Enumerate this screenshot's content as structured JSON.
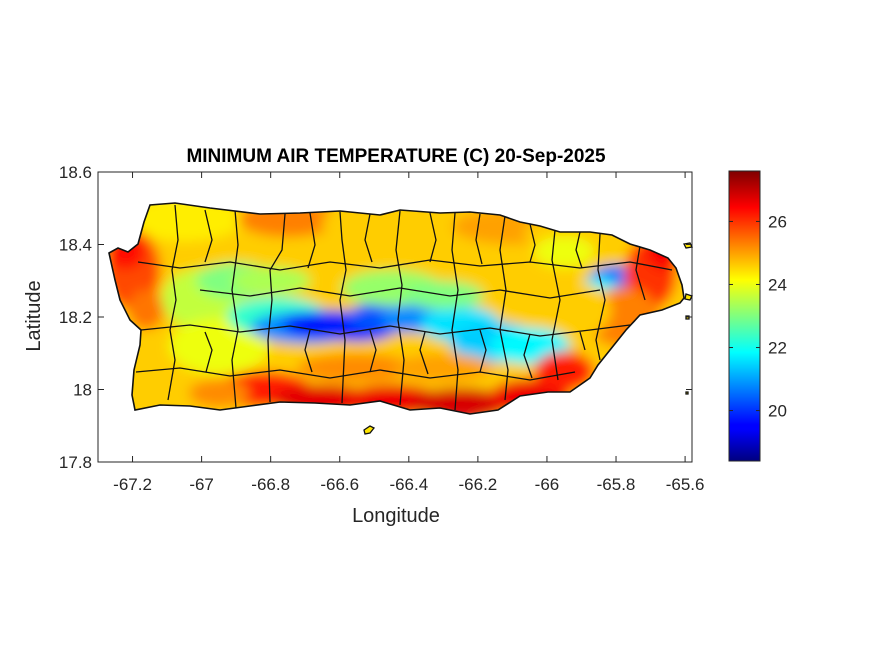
{
  "chart_data": {
    "type": "heatmap",
    "title": "MINIMUM AIR TEMPERATURE (C) 20-Sep-2025",
    "xlabel": "Longitude",
    "ylabel": "Latitude",
    "xlim": [
      -67.3,
      -65.58
    ],
    "ylim": [
      17.8,
      18.6
    ],
    "xticks": [
      -67.2,
      -67,
      -66.8,
      -66.6,
      -66.4,
      -66.2,
      -66,
      -65.8,
      -65.6
    ],
    "xtick_labels": [
      "-67.2",
      "-67",
      "-66.8",
      "-66.6",
      "-66.4",
      "-66.2",
      "-66",
      "-65.8",
      "-65.6"
    ],
    "yticks": [
      17.8,
      18,
      18.2,
      18.4,
      18.6
    ],
    "ytick_labels": [
      "17.8",
      "18",
      "18.2",
      "18.4",
      "18.6"
    ],
    "colorbar": {
      "colormap": "jet",
      "range": [
        18.4,
        27.6
      ],
      "ticks": [
        20,
        22,
        24,
        26
      ],
      "tick_labels": [
        "20",
        "22",
        "24",
        "26"
      ],
      "placement": "right"
    },
    "grid": false,
    "region": "Puerto Rico",
    "features": [
      {
        "description": "cool interior ridge (Cordillera Central)",
        "lon_range": [
          -66.85,
          -66.1
        ],
        "lat": 18.18,
        "min_value": 19.5
      },
      {
        "description": "cool pocket (El Yunque)",
        "lon": -65.8,
        "lat": 18.3,
        "min_value": 20.5
      },
      {
        "description": "warm south coast",
        "lon_range": [
          -66.9,
          -65.9
        ],
        "lat": 17.98,
        "max_value": 27.0
      },
      {
        "description": "warm east coast",
        "lon_range": [
          -65.8,
          -65.6
        ],
        "lat": 18.3,
        "max_value": 26.5
      },
      {
        "description": "warm west coast",
        "lon": -67.18,
        "lat": 18.3,
        "max_value": 26.0
      }
    ]
  }
}
